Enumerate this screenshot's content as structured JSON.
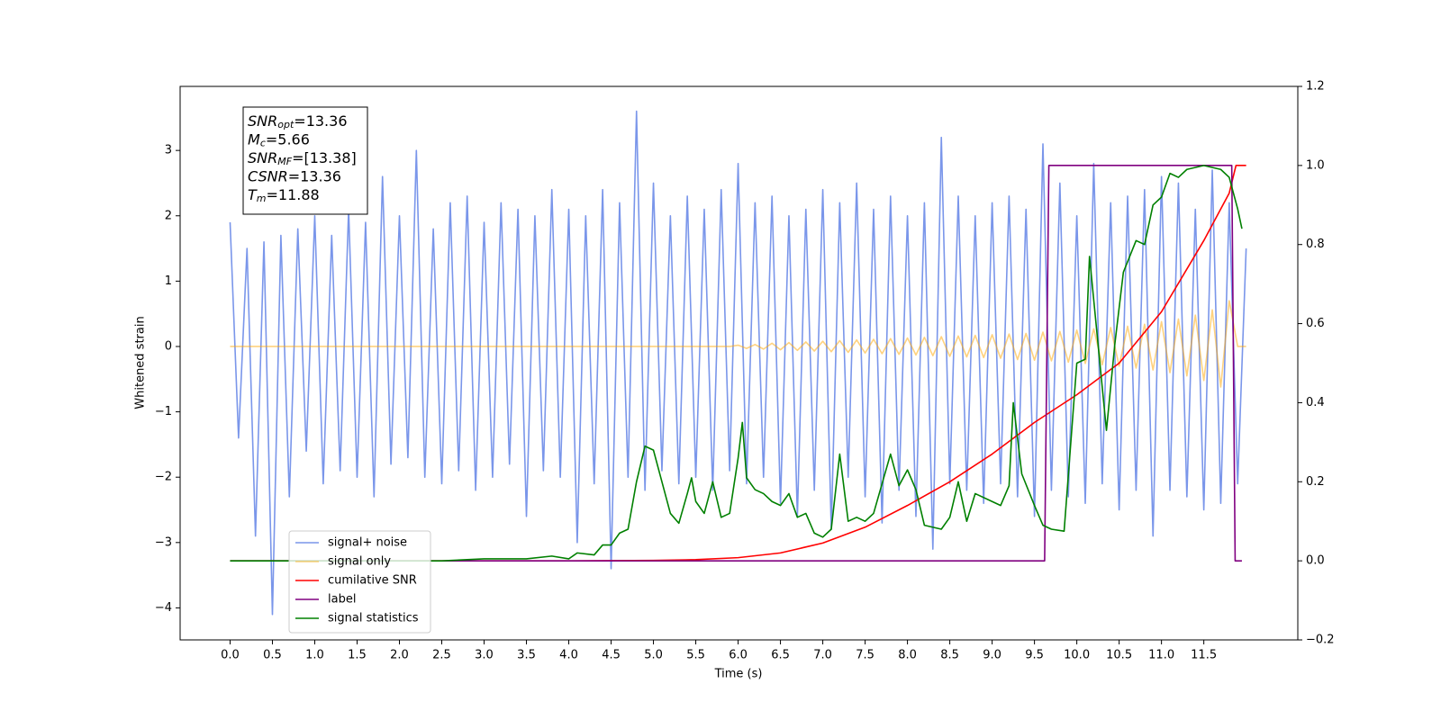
{
  "chart_data": {
    "type": "line",
    "xlabel": "Time (s)",
    "ylabel": "Whitened strain",
    "xlim": [
      -0.59,
      12.61
    ],
    "ylim": [
      -4.49,
      3.98
    ],
    "y2lim": [
      -0.2,
      1.2
    ],
    "xticks": [
      {
        "value": 0,
        "label": "0.0"
      },
      {
        "value": 0.5,
        "label": "0.5"
      },
      {
        "value": 1,
        "label": "1.0"
      },
      {
        "value": 1.5,
        "label": "1.5"
      },
      {
        "value": 2,
        "label": "2.0"
      },
      {
        "value": 2.5,
        "label": "2.5"
      },
      {
        "value": 3,
        "label": "3.0"
      },
      {
        "value": 3.5,
        "label": "3.5"
      },
      {
        "value": 4,
        "label": "4.0"
      },
      {
        "value": 4.5,
        "label": "4.5"
      },
      {
        "value": 5,
        "label": "5.0"
      },
      {
        "value": 5.5,
        "label": "5.5"
      },
      {
        "value": 6,
        "label": "6.0"
      },
      {
        "value": 6.5,
        "label": "6.5"
      },
      {
        "value": 7,
        "label": "7.0"
      },
      {
        "value": 7.5,
        "label": "7.5"
      },
      {
        "value": 8,
        "label": "8.0"
      },
      {
        "value": 8.5,
        "label": "8.5"
      },
      {
        "value": 9,
        "label": "9.0"
      },
      {
        "value": 9.5,
        "label": "9.5"
      },
      {
        "value": 10,
        "label": "10.0"
      },
      {
        "value": 10.5,
        "label": "10.5"
      },
      {
        "value": 11,
        "label": "11.0"
      },
      {
        "value": 11.5,
        "label": "11.5"
      }
    ],
    "yticks": [
      {
        "value": -4,
        "label": "−4"
      },
      {
        "value": -3,
        "label": "−3"
      },
      {
        "value": -2,
        "label": "−2"
      },
      {
        "value": -1,
        "label": "−1"
      },
      0,
      1,
      2,
      3
    ],
    "y2ticks": [
      {
        "value": -0.2,
        "label": "−0.2"
      },
      {
        "value": 0,
        "label": "0.0"
      },
      {
        "value": 0.2,
        "label": "0.2"
      },
      {
        "value": 0.4,
        "label": "0.4"
      },
      {
        "value": 0.6,
        "label": "0.6"
      },
      {
        "value": 0.8,
        "label": "0.8"
      },
      {
        "value": 1,
        "label": "1.0"
      },
      {
        "value": 1.2,
        "label": "1.2"
      }
    ],
    "legend": "lower left",
    "annotation": [
      {
        "main": "SNR",
        "sub": "opt",
        "text": "=13.36"
      },
      {
        "main": "M",
        "sub": "c",
        "text": "=5.66"
      },
      {
        "main": "SNR",
        "sub": "MF",
        "text": "=[13.38]"
      },
      {
        "main": "CSNR",
        "text": "=13.36"
      },
      {
        "main": "T",
        "sub": "m",
        "text": "=11.88"
      }
    ],
    "x": [
      0,
      0.1,
      0.2,
      0.3,
      0.4,
      0.5,
      0.6,
      0.7,
      0.8,
      0.9,
      1,
      1.1,
      1.2,
      1.3,
      1.4,
      1.5,
      1.6,
      1.7,
      1.8,
      1.9,
      2,
      2.1,
      2.2,
      2.3,
      2.4,
      2.5,
      2.6,
      2.7,
      2.8,
      2.9,
      3,
      3.1,
      3.2,
      3.3,
      3.4,
      3.5,
      3.6,
      3.7,
      3.8,
      3.9,
      4,
      4.1,
      4.2,
      4.3,
      4.4,
      4.5,
      4.6,
      4.7,
      4.8,
      4.9,
      5,
      5.1,
      5.2,
      5.3,
      5.4,
      5.5,
      5.6,
      5.7,
      5.8,
      5.9,
      6,
      6.1,
      6.2,
      6.3,
      6.4,
      6.5,
      6.6,
      6.7,
      6.8,
      6.9,
      7,
      7.1,
      7.2,
      7.3,
      7.4,
      7.5,
      7.6,
      7.7,
      7.8,
      7.9,
      8,
      8.1,
      8.2,
      8.3,
      8.4,
      8.5,
      8.6,
      8.7,
      8.8,
      8.9,
      9,
      9.1,
      9.2,
      9.3,
      9.4,
      9.5,
      9.6,
      9.7,
      9.8,
      9.9,
      10,
      10.1,
      10.2,
      10.3,
      10.4,
      10.5,
      10.6,
      10.7,
      10.8,
      10.9,
      11,
      11.1,
      11.2,
      11.3,
      11.4,
      11.5,
      11.6,
      11.7,
      11.8,
      11.9,
      12
    ],
    "series": [
      {
        "name": "signal+ noise",
        "color": "royalblue",
        "alpha": 0.7,
        "values": [
          1.9,
          -1.4,
          1.5,
          -2.9,
          1.6,
          -4.1,
          1.7,
          -2.3,
          1.8,
          -1.6,
          2.0,
          -2.1,
          1.7,
          -1.9,
          2.1,
          -2.0,
          1.9,
          -2.3,
          2.6,
          -1.8,
          2.0,
          -1.7,
          3.0,
          -2.0,
          1.8,
          -2.1,
          2.2,
          -1.9,
          2.3,
          -2.2,
          1.9,
          -2.0,
          2.2,
          -1.8,
          2.1,
          -2.6,
          2.0,
          -1.9,
          2.4,
          -2.0,
          2.1,
          -3.0,
          2.0,
          -2.1,
          2.4,
          -3.4,
          2.2,
          -2.0,
          3.6,
          -2.2,
          2.5,
          -1.9,
          2.0,
          -2.1,
          2.3,
          -2.0,
          2.1,
          -2.2,
          2.4,
          -1.9,
          2.8,
          -2.1,
          2.2,
          -2.0,
          2.3,
          -2.4,
          2.0,
          -2.6,
          2.1,
          -2.2,
          2.4,
          -2.8,
          2.2,
          -2.0,
          2.5,
          -2.3,
          2.1,
          -2.7,
          2.3,
          -2.2,
          2.0,
          -2.6,
          2.2,
          -3.1,
          3.2,
          -2.1,
          2.3,
          -2.2,
          2.0,
          -2.4,
          2.2,
          -2.1,
          2.3,
          -2.3,
          2.1,
          -2.6,
          3.1,
          -2.2,
          2.5,
          -2.3,
          2.0,
          -2.4,
          2.8,
          -2.1,
          2.2,
          -2.5,
          2.3,
          -2.2,
          2.4,
          -2.9,
          2.6,
          -2.2,
          2.5,
          -2.3,
          2.1,
          -2.5,
          2.7,
          -2.4,
          2.2,
          -2.1,
          1.5
        ]
      },
      {
        "name": "signal only",
        "color": "orange",
        "alpha": 0.5,
        "values": [
          0,
          0,
          0,
          0,
          0,
          0,
          0,
          0,
          0,
          0,
          0,
          0,
          0,
          0,
          0,
          0,
          0,
          0,
          0,
          0,
          0,
          0,
          0,
          0,
          0,
          0,
          0,
          0,
          0,
          0,
          0,
          0,
          0,
          0,
          0,
          0,
          0,
          0,
          0,
          0,
          0,
          0,
          0,
          0,
          0,
          0,
          0,
          0,
          0,
          0,
          0,
          0,
          0,
          0,
          0,
          0,
          0,
          0,
          0,
          0,
          0.02,
          -0.03,
          0.03,
          -0.04,
          0.05,
          -0.05,
          0.06,
          -0.06,
          0.07,
          -0.07,
          0.08,
          -0.08,
          0.09,
          -0.09,
          0.1,
          -0.1,
          0.11,
          -0.11,
          0.12,
          -0.12,
          0.13,
          -0.13,
          0.14,
          -0.14,
          0.15,
          -0.15,
          0.16,
          -0.16,
          0.17,
          -0.17,
          0.18,
          -0.18,
          0.19,
          -0.2,
          0.2,
          -0.21,
          0.22,
          -0.22,
          0.23,
          -0.24,
          0.25,
          -0.26,
          0.27,
          -0.28,
          0.29,
          -0.3,
          0.31,
          -0.33,
          0.34,
          -0.36,
          0.38,
          -0.4,
          0.42,
          -0.45,
          0.48,
          -0.52,
          0.56,
          -0.62,
          0.7,
          0,
          0
        ]
      },
      {
        "name": "cumilative SNR",
        "color": "red",
        "axis": "y2",
        "x": [
          0,
          1,
          2,
          3,
          4,
          5,
          5.5,
          6,
          6.5,
          7,
          7.5,
          8,
          8.5,
          9,
          9.5,
          10,
          10.5,
          11,
          11.5,
          11.8,
          11.88,
          12
        ],
        "values": [
          0,
          0,
          0,
          0,
          0,
          0.001,
          0.003,
          0.008,
          0.02,
          0.045,
          0.085,
          0.14,
          0.2,
          0.27,
          0.35,
          0.42,
          0.5,
          0.63,
          0.81,
          0.93,
          1,
          1
        ]
      },
      {
        "name": "label",
        "color": "purple",
        "axis": "y2",
        "x": [
          0,
          9.62,
          9.67,
          11.83,
          11.87,
          11.95
        ],
        "values": [
          0,
          0,
          1,
          1,
          0,
          0
        ]
      },
      {
        "name": "signal statistics",
        "color": "green",
        "axis": "y2",
        "x": [
          0,
          2.5,
          3,
          3.5,
          3.8,
          4,
          4.1,
          4.3,
          4.4,
          4.5,
          4.6,
          4.7,
          4.8,
          4.9,
          5,
          5.1,
          5.2,
          5.3,
          5.4,
          5.45,
          5.5,
          5.6,
          5.7,
          5.8,
          5.9,
          6,
          6.05,
          6.1,
          6.2,
          6.3,
          6.4,
          6.5,
          6.6,
          6.7,
          6.8,
          6.9,
          7,
          7.1,
          7.2,
          7.3,
          7.4,
          7.5,
          7.6,
          7.8,
          7.9,
          8,
          8.1,
          8.2,
          8.4,
          8.5,
          8.6,
          8.7,
          8.8,
          9,
          9.1,
          9.2,
          9.25,
          9.35,
          9.5,
          9.6,
          9.7,
          9.85,
          10,
          10.1,
          10.15,
          10.25,
          10.35,
          10.45,
          10.55,
          10.7,
          10.8,
          10.9,
          11,
          11.1,
          11.2,
          11.3,
          11.5,
          11.7,
          11.8,
          11.9,
          11.95
        ],
        "values": [
          0,
          0,
          0.005,
          0.005,
          0.012,
          0.005,
          0.02,
          0.015,
          0.04,
          0.04,
          0.07,
          0.08,
          0.2,
          0.29,
          0.28,
          0.2,
          0.12,
          0.095,
          0.17,
          0.21,
          0.15,
          0.12,
          0.2,
          0.11,
          0.12,
          0.26,
          0.35,
          0.21,
          0.18,
          0.17,
          0.15,
          0.14,
          0.17,
          0.11,
          0.12,
          0.07,
          0.06,
          0.08,
          0.27,
          0.1,
          0.11,
          0.1,
          0.12,
          0.27,
          0.19,
          0.23,
          0.18,
          0.09,
          0.08,
          0.11,
          0.2,
          0.1,
          0.17,
          0.15,
          0.14,
          0.19,
          0.4,
          0.22,
          0.14,
          0.09,
          0.08,
          0.075,
          0.5,
          0.51,
          0.77,
          0.55,
          0.33,
          0.55,
          0.73,
          0.81,
          0.8,
          0.9,
          0.92,
          0.98,
          0.97,
          0.99,
          1,
          0.99,
          0.97,
          0.89,
          0.84
        ]
      }
    ]
  }
}
